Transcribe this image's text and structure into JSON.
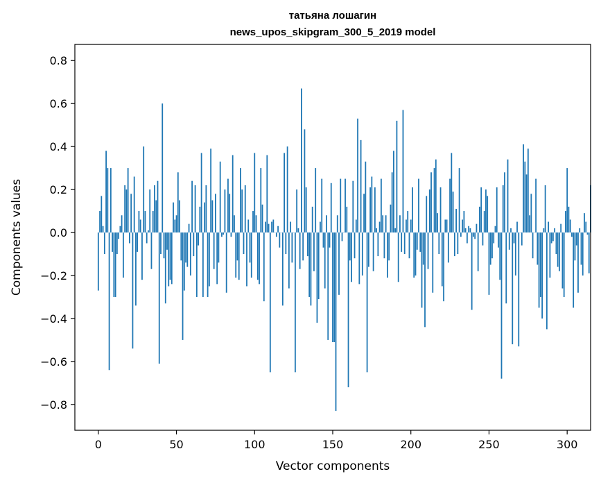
{
  "chart_data": {
    "type": "bar",
    "title_line1": "татьяна лошагин",
    "title_line2": "news_upos_skipgram_300_5_2019 model",
    "xlabel": "Vector components",
    "ylabel": "Components values",
    "xlim": [
      -15,
      315
    ],
    "ylim": [
      -0.92,
      0.875
    ],
    "xticks": [
      0,
      50,
      100,
      150,
      200,
      250,
      300
    ],
    "xtick_labels": [
      "0",
      "50",
      "100",
      "150",
      "200",
      "250",
      "300"
    ],
    "yticks": [
      -0.8,
      -0.6,
      -0.4,
      -0.2,
      0.0,
      0.2,
      0.4,
      0.6,
      0.8
    ],
    "ytick_labels": [
      "−0.8",
      "−0.6",
      "−0.4",
      "−0.2",
      "0.0",
      "0.2",
      "0.4",
      "0.6",
      "0.8"
    ],
    "grid": false,
    "bar_color": "#1f77b4",
    "values": [
      -0.27,
      0.1,
      0.17,
      0.03,
      -0.1,
      0.38,
      0.3,
      -0.64,
      0.3,
      -0.09,
      -0.3,
      -0.3,
      -0.1,
      -0.03,
      0.03,
      0.08,
      -0.21,
      0.22,
      0.2,
      0.3,
      -0.05,
      0.18,
      -0.54,
      0.26,
      -0.34,
      -0.09,
      0.1,
      0.06,
      -0.22,
      0.4,
      0.1,
      -0.05,
      0.01,
      0.2,
      -0.17,
      0.1,
      0.22,
      0.15,
      0.24,
      -0.61,
      -0.1,
      0.6,
      -0.12,
      -0.33,
      -0.08,
      -0.25,
      -0.22,
      -0.24,
      0.14,
      0.06,
      0.08,
      0.28,
      0.15,
      -0.13,
      -0.5,
      -0.27,
      -0.14,
      -0.16,
      0.04,
      -0.2,
      0.24,
      -0.11,
      0.22,
      -0.3,
      -0.06,
      0.12,
      0.37,
      -0.3,
      0.14,
      0.22,
      -0.3,
      -0.25,
      0.39,
      0.15,
      -0.17,
      0.18,
      -0.24,
      -0.14,
      0.33,
      -0.02,
      -0.01,
      0.2,
      -0.28,
      0.25,
      0.18,
      -0.02,
      0.36,
      0.08,
      -0.21,
      -0.13,
      -0.22,
      0.3,
      0.2,
      -0.1,
      0.22,
      -0.25,
      0.06,
      -0.14,
      -0.21,
      0.1,
      0.37,
      0.08,
      -0.22,
      -0.24,
      0.3,
      0.13,
      -0.32,
      0.05,
      0.36,
      0.04,
      -0.65,
      0.05,
      0.06,
      0.0,
      -0.02,
      0.03,
      -0.07,
      0.0,
      -0.34,
      0.37,
      -0.1,
      0.4,
      -0.26,
      0.05,
      -0.14,
      0.0,
      -0.65,
      0.2,
      0.02,
      -0.17,
      0.67,
      -0.13,
      0.48,
      0.21,
      -0.11,
      -0.3,
      -0.34,
      0.12,
      -0.18,
      0.3,
      -0.42,
      -0.31,
      0.05,
      0.25,
      -0.07,
      -0.26,
      0.08,
      -0.5,
      -0.07,
      0.23,
      -0.51,
      -0.51,
      -0.83,
      0.08,
      -0.29,
      0.25,
      -0.04,
      0.0,
      0.25,
      0.12,
      -0.72,
      -0.13,
      -0.23,
      0.24,
      -0.12,
      0.06,
      0.53,
      -0.24,
      0.43,
      -0.2,
      0.18,
      0.33,
      -0.65,
      -0.16,
      0.21,
      0.26,
      -0.18,
      0.21,
      0.02,
      -0.11,
      0.05,
      0.25,
      0.08,
      -0.12,
      0.08,
      -0.21,
      -0.13,
      0.13,
      0.28,
      0.38,
      0.02,
      0.52,
      -0.23,
      0.08,
      -0.09,
      0.57,
      -0.1,
      0.06,
      0.1,
      -0.12,
      0.06,
      0.21,
      -0.21,
      -0.2,
      -0.08,
      0.25,
      -0.09,
      -0.35,
      -0.15,
      -0.44,
      0.17,
      -0.17,
      0.2,
      0.28,
      -0.28,
      0.3,
      0.34,
      0.09,
      -0.1,
      0.21,
      -0.25,
      -0.32,
      0.06,
      0.06,
      -0.14,
      0.25,
      0.37,
      0.19,
      -0.11,
      0.11,
      -0.1,
      0.3,
      -0.02,
      0.06,
      0.1,
      0.02,
      -0.05,
      0.03,
      0.02,
      -0.36,
      -0.02,
      -0.03,
      0.04,
      -0.18,
      0.12,
      0.21,
      -0.06,
      0.1,
      0.2,
      0.17,
      -0.29,
      -0.15,
      -0.12,
      -0.05,
      0.03,
      0.21,
      -0.07,
      -0.22,
      -0.68,
      0.22,
      0.28,
      -0.33,
      0.34,
      -0.08,
      0.02,
      -0.52,
      -0.05,
      -0.2,
      0.05,
      -0.53,
      0.0,
      -0.06,
      0.41,
      0.33,
      0.27,
      0.39,
      0.08,
      0.18,
      -0.12,
      0.0,
      0.25,
      -0.15,
      -0.35,
      -0.3,
      -0.4,
      0.02,
      0.22,
      -0.45,
      0.05,
      -0.21,
      -0.05,
      -0.04,
      0.02,
      -0.1,
      -0.16,
      -0.18,
      0.04,
      -0.26,
      -0.3,
      0.1,
      0.3,
      0.12,
      0.06,
      -0.02,
      -0.35,
      -0.13,
      -0.06,
      -0.28,
      0.02,
      -0.15,
      -0.2,
      0.09,
      0.05,
      -0.01,
      -0.19,
      0.22
    ]
  }
}
